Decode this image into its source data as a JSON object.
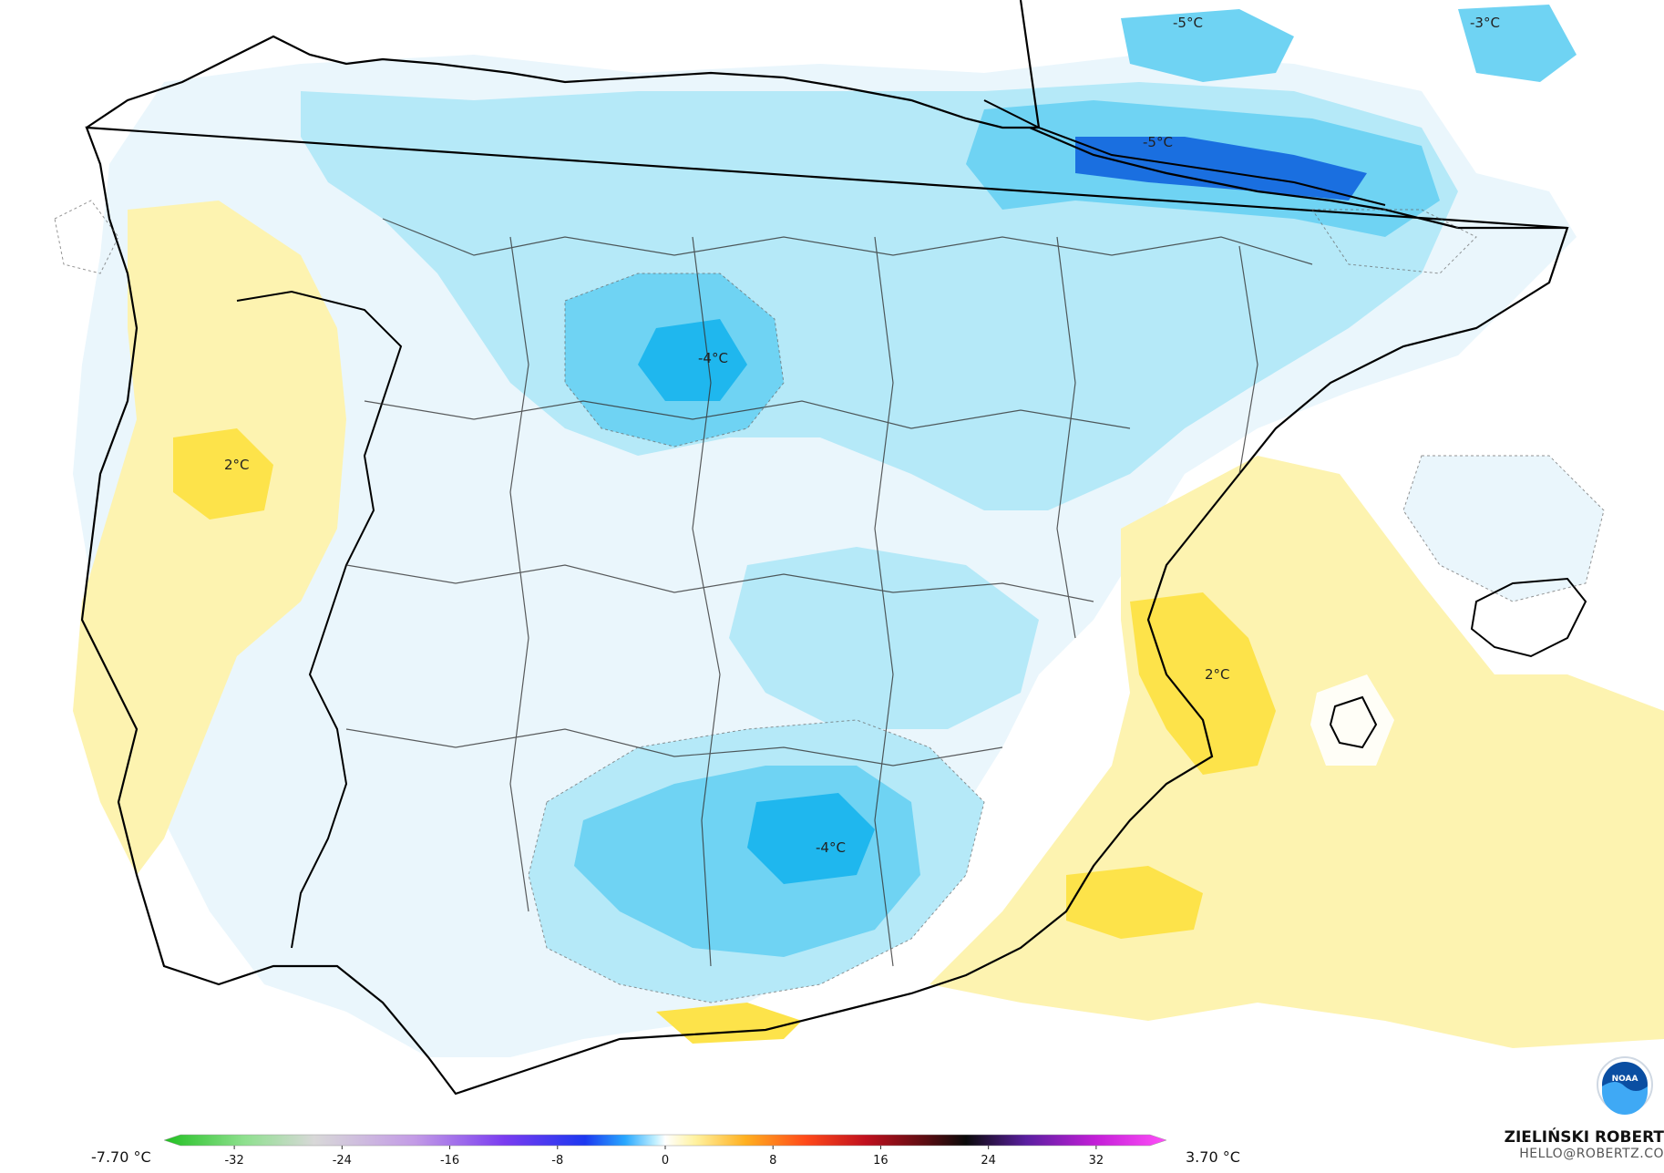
{
  "map": {
    "labels": [
      {
        "text": "-5°C"
      },
      {
        "text": "-3°C"
      },
      {
        "text": "-5°C"
      },
      {
        "text": "-4°C"
      },
      {
        "text": "2°C"
      },
      {
        "text": "2°C"
      },
      {
        "text": "-4°C"
      }
    ]
  },
  "legend": {
    "min_label": "-7.70 °C",
    "max_label": "3.70 °C",
    "ticks": [
      "-32",
      "-24",
      "-16",
      "-8",
      "0",
      "8",
      "16",
      "24",
      "32"
    ],
    "range": [
      -36,
      36
    ]
  },
  "author": {
    "name": "ZIELIŃSKI ROBERT",
    "email": "HELLO@ROBERTZ.CO"
  },
  "colors": {
    "land": "#ffffff",
    "anomaly_neg_1": "#eaf6fc",
    "anomaly_neg_2": "#b5e9f8",
    "anomaly_neg_3": "#6fd3f3",
    "anomaly_neg_4": "#1fb7ee",
    "anomaly_neg_5": "#1a6fe0",
    "anomaly_pos_1": "#fdf3b0",
    "anomaly_pos_2": "#fde34a",
    "coast": "#000000",
    "borders": "#222222"
  },
  "icons": {
    "logo": "noaa-logo-icon"
  }
}
